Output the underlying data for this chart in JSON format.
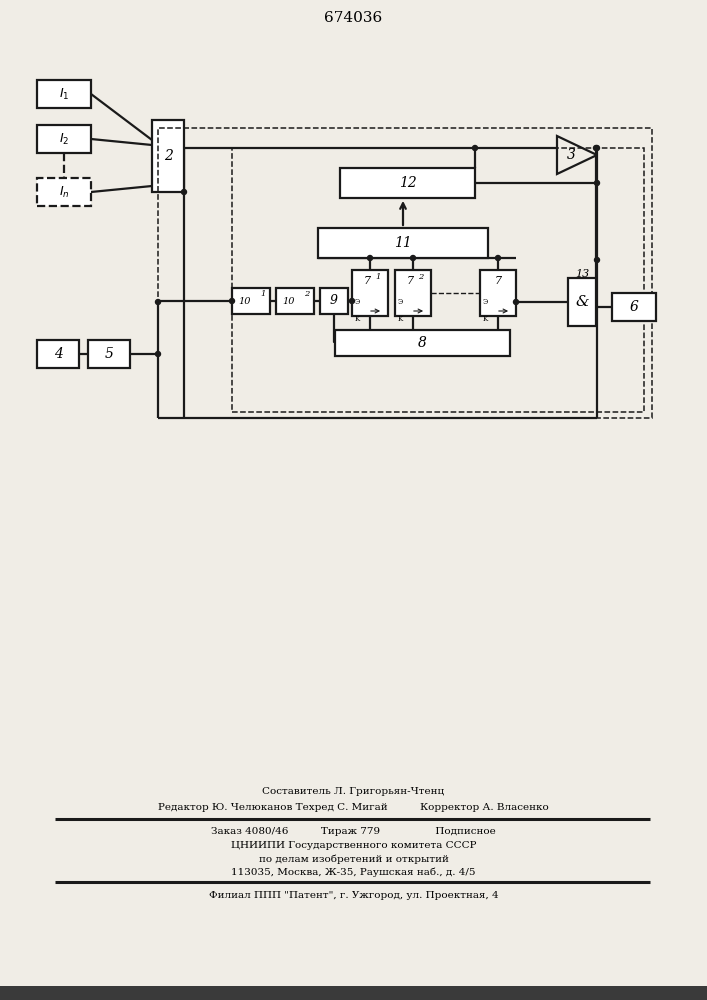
{
  "title": "674036",
  "bg_color": "#f0ede6",
  "figsize": [
    7.07,
    10.0
  ],
  "dpi": 100,
  "footer": {
    "line1": "Составитель Л. Григорьян-Чтенц",
    "line2": "Редактор Ю. Челюканов Техред С. Мигай          Корректор А. Власенко",
    "line3": "Заказ 4080/46          Тираж 779                 Подписное",
    "line4": "ЦНИИПИ Государственного комитета СССР",
    "line5": "по делам изобретений и открытий",
    "line6": "113035, Москва, Ж-35, Раушская наб., д. 4/5",
    "line7": "Филиал ППП \"Патент\", г. Ужгород, ул. Проектная, 4"
  }
}
